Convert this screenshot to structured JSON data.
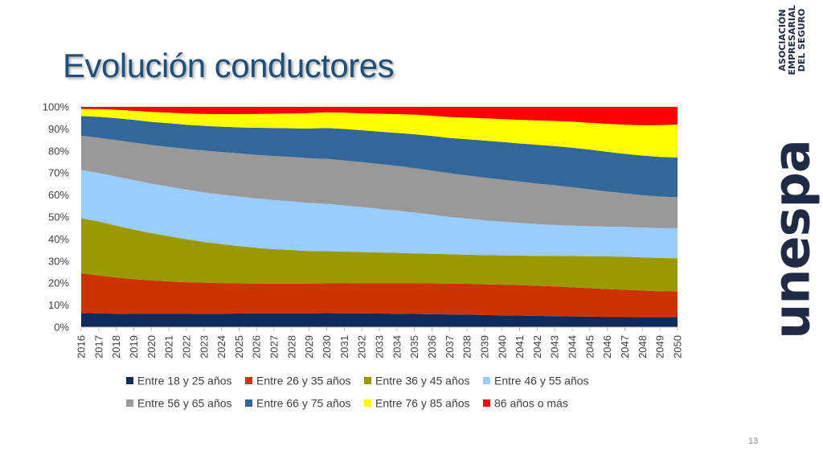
{
  "slide": {
    "title": "Evolución conductores",
    "page_number": "13"
  },
  "logo": {
    "name": "unespa",
    "main_text": "unespa",
    "subtitle_lines": [
      "ASOCIACIÓN",
      "EMPRESARIAL",
      "DEL SEGURO"
    ]
  },
  "chart_data": {
    "type": "area",
    "stacked": "percent",
    "title": "",
    "xlabel": "",
    "ylabel": "",
    "ylim": [
      0,
      100
    ],
    "y_ticks": [
      "0%",
      "10%",
      "20%",
      "30%",
      "40%",
      "50%",
      "60%",
      "70%",
      "80%",
      "90%",
      "100%"
    ],
    "x": [
      "2016",
      "2017",
      "2018",
      "2019",
      "2020",
      "2021",
      "2022",
      "2023",
      "2024",
      "2025",
      "2026",
      "2027",
      "2028",
      "2029",
      "2030",
      "2031",
      "2032",
      "2033",
      "2034",
      "2035",
      "2036",
      "2037",
      "2038",
      "2039",
      "2040",
      "2041",
      "2042",
      "2043",
      "2044",
      "2045",
      "2046",
      "2047",
      "2048",
      "2049",
      "2050"
    ],
    "grid": true,
    "legend_position": "bottom",
    "series": [
      {
        "name": "Entre 18 y 25 años",
        "color": "#0d2c5c",
        "values": [
          6.5,
          6.3,
          6.1,
          6.0,
          6.0,
          6.0,
          6.0,
          6.1,
          6.1,
          6.2,
          6.3,
          6.3,
          6.3,
          6.3,
          6.4,
          6.3,
          6.3,
          6.2,
          6.1,
          6.0,
          5.9,
          5.8,
          5.7,
          5.5,
          5.4,
          5.3,
          5.1,
          5.0,
          4.9,
          4.8,
          4.7,
          4.7,
          4.6,
          4.6,
          4.6
        ]
      },
      {
        "name": "Entre 26 y 35 años",
        "color": "#cc3300",
        "values": [
          17.9,
          17.2,
          16.5,
          15.8,
          15.2,
          14.8,
          14.4,
          14.1,
          13.9,
          13.7,
          13.5,
          13.5,
          13.5,
          13.5,
          13.5,
          13.6,
          13.7,
          13.8,
          13.9,
          14.0,
          14.0,
          14.0,
          14.0,
          14.0,
          13.9,
          13.8,
          13.7,
          13.5,
          13.2,
          12.9,
          12.6,
          12.3,
          12.0,
          11.7,
          11.6
        ]
      },
      {
        "name": "Entre 36 y 45 años",
        "color": "#999900",
        "values": [
          25.1,
          24.5,
          23.5,
          22.5,
          21.5,
          20.5,
          19.5,
          18.5,
          17.7,
          16.9,
          16.2,
          15.6,
          15.2,
          14.8,
          14.6,
          14.4,
          14.1,
          13.9,
          13.7,
          13.5,
          13.4,
          13.3,
          13.2,
          13.2,
          13.3,
          13.4,
          13.6,
          13.9,
          14.2,
          14.5,
          14.8,
          15.0,
          15.1,
          15.1,
          15.1
        ]
      },
      {
        "name": "Entre 46 y 55 años",
        "color": "#99ccff",
        "values": [
          21.9,
          22.0,
          22.3,
          22.5,
          22.5,
          22.5,
          22.5,
          22.5,
          22.5,
          22.5,
          22.4,
          22.3,
          22.1,
          21.8,
          21.5,
          21.0,
          20.4,
          19.8,
          19.2,
          18.5,
          17.8,
          17.0,
          16.4,
          15.8,
          15.3,
          14.8,
          14.4,
          14.0,
          13.8,
          13.6,
          13.5,
          13.5,
          13.5,
          13.6,
          13.7
        ]
      },
      {
        "name": "Entre 56 y 65 años",
        "color": "#999999",
        "values": [
          15.5,
          16.0,
          16.5,
          17.0,
          17.5,
          18.0,
          18.5,
          19.0,
          19.3,
          19.6,
          19.8,
          20.0,
          20.2,
          20.3,
          20.4,
          20.4,
          20.4,
          20.4,
          20.3,
          20.2,
          20.0,
          19.8,
          19.6,
          19.4,
          19.1,
          18.8,
          18.4,
          18.0,
          17.4,
          16.8,
          16.0,
          15.2,
          14.7,
          14.3,
          14.0
        ]
      },
      {
        "name": "Entre 66 y 75 años",
        "color": "#336699",
        "values": [
          9.0,
          9.5,
          10.0,
          10.3,
          10.5,
          10.8,
          11.0,
          11.2,
          11.5,
          11.8,
          12.3,
          12.7,
          13.0,
          13.5,
          14.0,
          14.3,
          14.5,
          14.7,
          15.0,
          15.4,
          15.7,
          16.0,
          16.4,
          16.8,
          17.1,
          17.3,
          17.6,
          17.8,
          18.0,
          18.0,
          18.0,
          18.0,
          18.0,
          18.0,
          18.0
        ]
      },
      {
        "name": "Entre 76 y 85 años",
        "color": "#ffff00",
        "values": [
          3.2,
          3.5,
          3.8,
          4.1,
          4.5,
          4.8,
          5.1,
          5.4,
          5.7,
          6.0,
          6.3,
          6.5,
          6.7,
          7.0,
          7.2,
          7.4,
          7.7,
          8.1,
          8.5,
          8.9,
          9.2,
          9.5,
          9.8,
          10.1,
          10.4,
          10.7,
          11.1,
          11.4,
          11.8,
          12.2,
          12.7,
          13.2,
          13.8,
          14.4,
          15.0
        ]
      },
      {
        "name": "86 años o más",
        "color": "#ff0000",
        "values": [
          0.9,
          1.0,
          1.3,
          1.8,
          2.3,
          2.6,
          3.0,
          3.2,
          3.3,
          3.3,
          3.2,
          3.1,
          3.0,
          2.8,
          2.4,
          2.6,
          2.9,
          3.1,
          3.3,
          3.5,
          4.0,
          4.6,
          4.9,
          5.2,
          5.5,
          5.9,
          6.1,
          6.4,
          6.7,
          7.2,
          7.7,
          8.1,
          8.3,
          8.3,
          8.0
        ]
      }
    ]
  }
}
